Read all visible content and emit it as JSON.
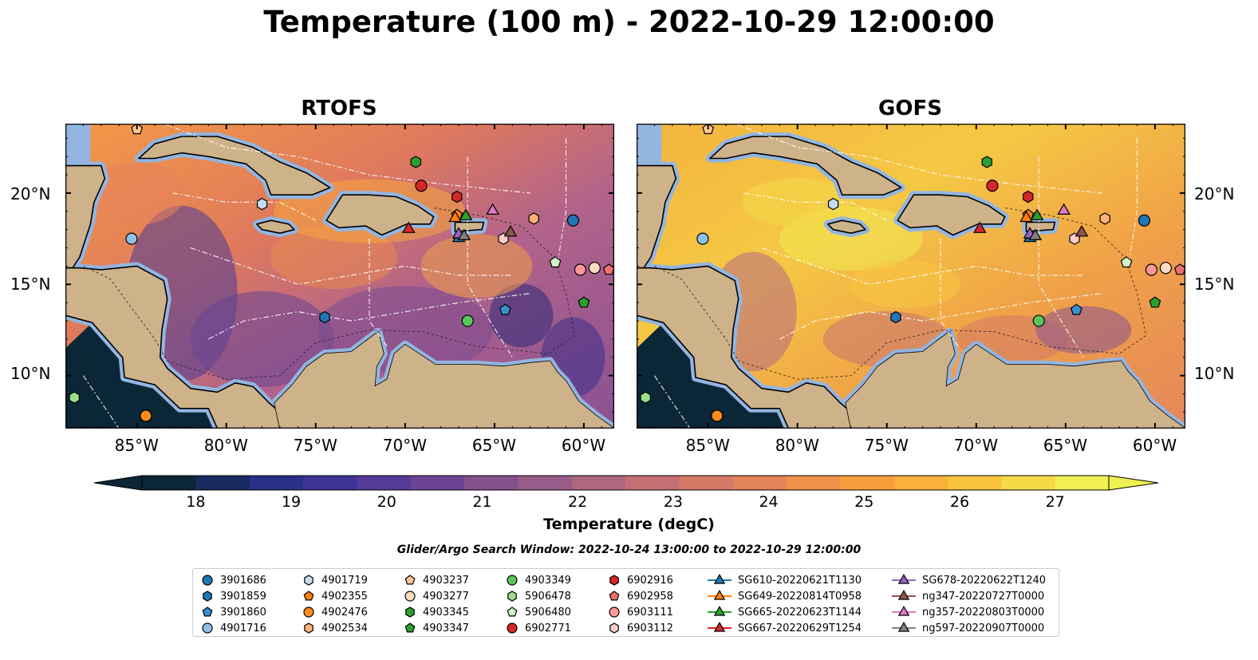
{
  "title": "Temperature (100 m) - 2022-10-29 12:00:00",
  "panels": [
    {
      "title": "RTOFS",
      "key": "rtofs"
    },
    {
      "title": "GOFS",
      "key": "gofs"
    }
  ],
  "axes": {
    "x_ticks": [
      "85°W",
      "80°W",
      "75°W",
      "70°W",
      "65°W",
      "60°W"
    ],
    "x_values": [
      -85,
      -80,
      -75,
      -70,
      -65,
      -60
    ],
    "y_ticks": [
      "20°N",
      "15°N",
      "10°N"
    ],
    "y_values": [
      20,
      15,
      10
    ],
    "lon_range": [
      -89,
      -58.3
    ],
    "lat_range": [
      7.1,
      23.8
    ]
  },
  "colorbar": {
    "label": "Temperature (degC)",
    "ticks": [
      "18",
      "19",
      "20",
      "21",
      "22",
      "23",
      "24",
      "25",
      "26",
      "27"
    ],
    "range": [
      18,
      27
    ],
    "extend": "both",
    "colors": [
      "#0b2637",
      "#182b5e",
      "#2a3087",
      "#3d3397",
      "#553a98",
      "#6c4494",
      "#83518e",
      "#995c88",
      "#af6780",
      "#c46f74",
      "#d57866",
      "#e3845a",
      "#ef9149",
      "#f69f3c",
      "#f9b13a",
      "#f9c33e",
      "#f5da45",
      "#eef150"
    ]
  },
  "search_window": "Glider/Argo Search Window: 2022-10-24 13:00:00 to 2022-10-29 12:00:00",
  "legend": [
    {
      "label": "3901686",
      "marker": "circle",
      "color": "#1f77b4"
    },
    {
      "label": "3901859",
      "marker": "hexagon",
      "color": "#1f77b4"
    },
    {
      "label": "3901860",
      "marker": "pentagon",
      "color": "#3a8fd0"
    },
    {
      "label": "4901716",
      "marker": "circle",
      "color": "#8ec1ea"
    },
    {
      "label": "4901719",
      "marker": "hexagon",
      "color": "#c6dcf2"
    },
    {
      "label": "4902355",
      "marker": "pentagon",
      "color": "#ff7f0e"
    },
    {
      "label": "4902476",
      "marker": "circle",
      "color": "#ff8c1a"
    },
    {
      "label": "4902534",
      "marker": "hexagon",
      "color": "#ffb277"
    },
    {
      "label": "4903237",
      "marker": "pentagon",
      "color": "#ffc691"
    },
    {
      "label": "4903277",
      "marker": "circle",
      "color": "#ffdcc0"
    },
    {
      "label": "4903345",
      "marker": "hexagon",
      "color": "#2ca02c"
    },
    {
      "label": "4903347",
      "marker": "pentagon",
      "color": "#2ca02c"
    },
    {
      "label": "4903349",
      "marker": "circle",
      "color": "#5cc45c"
    },
    {
      "label": "5906478",
      "marker": "hexagon",
      "color": "#98df8a"
    },
    {
      "label": "5906480",
      "marker": "pentagon",
      "color": "#d3f2cc"
    },
    {
      "label": "6902771",
      "marker": "circle",
      "color": "#d62728"
    },
    {
      "label": "6902916",
      "marker": "hexagon",
      "color": "#d62728"
    },
    {
      "label": "6902958",
      "marker": "pentagon",
      "color": "#f07070"
    },
    {
      "label": "6903111",
      "marker": "circle",
      "color": "#ff9896"
    },
    {
      "label": "6903112",
      "marker": "hexagon",
      "color": "#ffcccb"
    },
    {
      "label": "SG610-20220621T1130",
      "marker": "triangle",
      "color": "#1f77b4"
    },
    {
      "label": "SG649-20220814T0958",
      "marker": "triangle",
      "color": "#ff7f0e"
    },
    {
      "label": "SG665-20220623T1144",
      "marker": "triangle",
      "color": "#2ca02c"
    },
    {
      "label": "SG667-20220629T1254",
      "marker": "triangle",
      "color": "#d62728"
    },
    {
      "label": "SG678-20220622T1240",
      "marker": "triangle",
      "color": "#9467bd"
    },
    {
      "label": "ng347-20220727T0000",
      "marker": "triangle",
      "color": "#8c564b"
    },
    {
      "label": "ng357-20220803T0000",
      "marker": "triangle",
      "color": "#e377c2"
    },
    {
      "label": "ng597-20220907T0000",
      "marker": "triangle",
      "color": "#7f7f7f"
    }
  ],
  "floats": [
    {
      "id": "3901686",
      "lon": -60.6,
      "lat": 18.5
    },
    {
      "id": "3901859",
      "lon": -74.5,
      "lat": 13.2
    },
    {
      "id": "3901860",
      "lon": -64.4,
      "lat": 13.6
    },
    {
      "id": "4901716",
      "lon": -85.3,
      "lat": 17.5
    },
    {
      "id": "4901719",
      "lon": -78.0,
      "lat": 19.4
    },
    {
      "id": "4902355",
      "lon": -67.1,
      "lat": 18.8
    },
    {
      "id": "4902476",
      "lon": -84.5,
      "lat": 7.8
    },
    {
      "id": "4902534",
      "lon": -62.8,
      "lat": 18.6
    },
    {
      "id": "4903237",
      "lon": -85.0,
      "lat": 23.5
    },
    {
      "id": "4903277",
      "lon": -59.4,
      "lat": 15.9
    },
    {
      "id": "4903345",
      "lon": -69.4,
      "lat": 21.7
    },
    {
      "id": "4903347",
      "lon": -60.0,
      "lat": 14.0
    },
    {
      "id": "4903349",
      "lon": -66.5,
      "lat": 13.0
    },
    {
      "id": "5906478",
      "lon": -88.5,
      "lat": 8.8
    },
    {
      "id": "5906480",
      "lon": -61.6,
      "lat": 16.2
    },
    {
      "id": "6902771",
      "lon": -69.1,
      "lat": 20.4
    },
    {
      "id": "6902916",
      "lon": -67.1,
      "lat": 19.8
    },
    {
      "id": "6902958",
      "lon": -58.6,
      "lat": 15.8
    },
    {
      "id": "6903111",
      "lon": -60.2,
      "lat": 15.8
    },
    {
      "id": "6903112",
      "lon": -64.5,
      "lat": 17.5
    },
    {
      "id": "SG610-20220621T1130",
      "lon": -67.0,
      "lat": 17.6
    },
    {
      "id": "SG649-20220814T0958",
      "lon": -67.2,
      "lat": 18.7
    },
    {
      "id": "SG665-20220623T1144",
      "lon": -66.6,
      "lat": 18.8
    },
    {
      "id": "SG667-20220629T1254",
      "lon": -69.8,
      "lat": 18.1
    },
    {
      "id": "SG678-20220622T1240",
      "lon": -67.0,
      "lat": 17.8
    },
    {
      "id": "ng347-20220727T0000",
      "lon": -64.1,
      "lat": 17.9
    },
    {
      "id": "ng357-20220803T0000",
      "lon": -65.1,
      "lat": 19.1
    },
    {
      "id": "ng597-20220907T0000",
      "lon": -66.7,
      "lat": 17.7
    }
  ]
}
